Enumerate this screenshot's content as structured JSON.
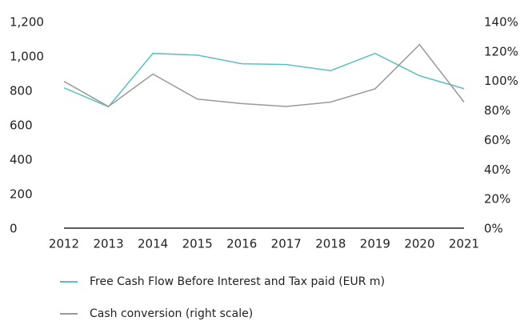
{
  "chart_data": {
    "type": "line",
    "categories": [
      "2012",
      "2013",
      "2014",
      "2015",
      "2016",
      "2017",
      "2018",
      "2019",
      "2020",
      "2021"
    ],
    "series": [
      {
        "name": "Free Cash Flow Before Interest and Tax paid (EUR m)",
        "color": "#5bbfbf",
        "values": [
          820,
          710,
          1020,
          1010,
          960,
          955,
          920,
          1020,
          890,
          815
        ]
      },
      {
        "name": "Cash conversion (right scale)",
        "color": "#999999",
        "axis": "y2",
        "values": [
          100,
          83,
          105,
          88,
          85,
          83,
          86,
          95,
          125,
          86
        ]
      }
    ],
    "ylim": [
      0,
      1200
    ],
    "yticks": [
      0,
      200,
      400,
      600,
      800,
      {
        "value": 1000,
        "label": "1,000"
      },
      {
        "value": 1200,
        "label": "1,200"
      }
    ],
    "y2lim": [
      0,
      140
    ],
    "y2ticks": [
      {
        "value": 0,
        "label": "0%"
      },
      {
        "value": 20,
        "label": "20%"
      },
      {
        "value": 40,
        "label": "40%"
      },
      {
        "value": 60,
        "label": "60%"
      },
      {
        "value": 80,
        "label": "80%"
      },
      {
        "value": 100,
        "label": "100%"
      },
      {
        "value": 120,
        "label": "120%"
      },
      {
        "value": 140,
        "label": "140%"
      }
    ],
    "grid": false,
    "legend": "bottom"
  }
}
